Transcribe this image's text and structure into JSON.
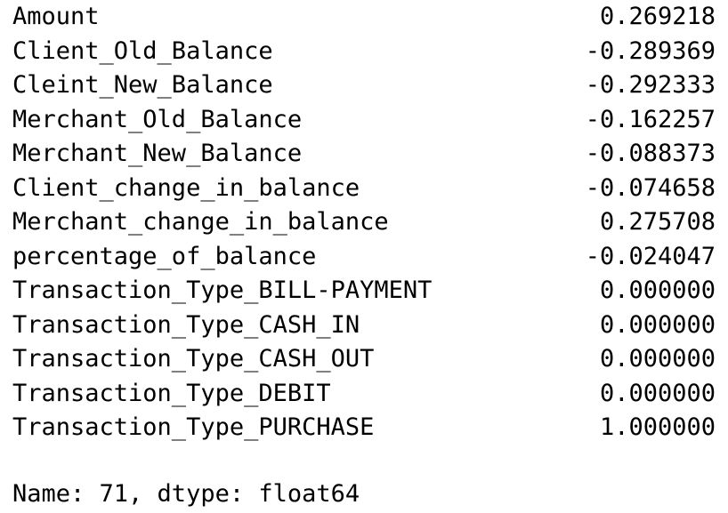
{
  "series_output": {
    "rows": [
      {
        "label": "Amount",
        "value": "0.269218"
      },
      {
        "label": "Client_Old_Balance",
        "value": "-0.289369"
      },
      {
        "label": "Cleint_New_Balance",
        "value": "-0.292333"
      },
      {
        "label": "Merchant_Old_Balance",
        "value": "-0.162257"
      },
      {
        "label": "Merchant_New_Balance",
        "value": "-0.088373"
      },
      {
        "label": "Client_change_in_balance",
        "value": "-0.074658"
      },
      {
        "label": "Merchant_change_in_balance",
        "value": "0.275708"
      },
      {
        "label": "percentage_of_balance",
        "value": "-0.024047"
      },
      {
        "label": "Transaction_Type_BILL-PAYMENT",
        "value": "0.000000"
      },
      {
        "label": "Transaction_Type_CASH_IN",
        "value": "0.000000"
      },
      {
        "label": "Transaction_Type_CASH_OUT",
        "value": "0.000000"
      },
      {
        "label": "Transaction_Type_DEBIT",
        "value": "0.000000"
      },
      {
        "label": "Transaction_Type_PURCHASE",
        "value": "1.000000"
      }
    ],
    "footer": "Name: 71, dtype: float64"
  }
}
